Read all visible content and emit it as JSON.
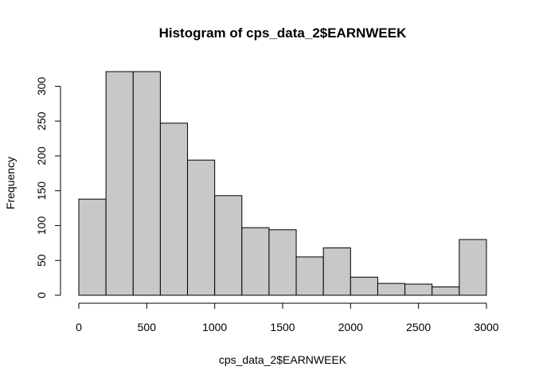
{
  "chart_data": {
    "type": "bar",
    "title": "Histogram of cps_data_2$EARNWEEK",
    "xlabel": "cps_data_2$EARNWEEK",
    "ylabel": "Frequency",
    "bin_edges": [
      0,
      200,
      400,
      600,
      800,
      1000,
      1200,
      1400,
      1600,
      1800,
      2000,
      2200,
      2400,
      2600,
      2800,
      3000
    ],
    "values": [
      138,
      321,
      321,
      247,
      194,
      143,
      97,
      94,
      55,
      68,
      26,
      17,
      16,
      12,
      80
    ],
    "xlim": [
      0,
      3000
    ],
    "ylim": [
      0,
      321
    ],
    "x_ticks": [
      0,
      500,
      1000,
      1500,
      2000,
      2500,
      3000
    ],
    "x_tick_labels": [
      "0",
      "500",
      "1000",
      "1500",
      "2000",
      "2500",
      "3000"
    ],
    "y_ticks": [
      0,
      50,
      100,
      150,
      200,
      250,
      300
    ],
    "y_tick_labels": [
      "0",
      "50",
      "100",
      "150",
      "200",
      "250",
      "300"
    ],
    "bar_color": "#c8c8c8",
    "bar_border_color": "#000000",
    "grid": false
  }
}
